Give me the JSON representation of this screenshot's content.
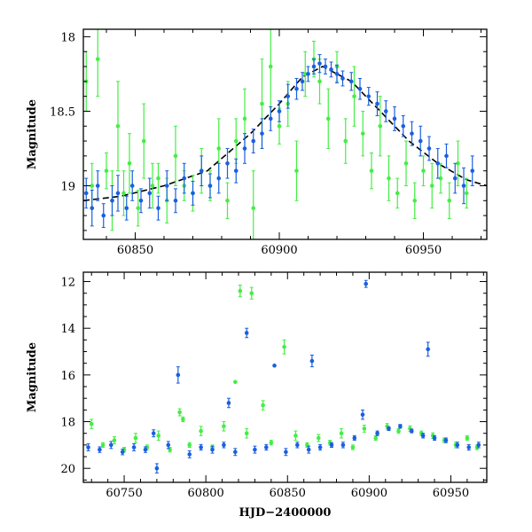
{
  "chart_data": [
    {
      "type": "scatter",
      "panel": "top",
      "xlabel": "",
      "ylabel": "Magnitude",
      "xlim": [
        60832,
        60972
      ],
      "ylim": [
        19.36,
        17.95
      ],
      "y_inverted": true,
      "xticks": [
        60850,
        60900,
        60950
      ],
      "yticks": [
        18,
        18.5,
        19
      ],
      "xtick_labels": [
        "60850",
        "60900",
        "60950"
      ],
      "ytick_labels": [
        "18",
        "18.5",
        "19"
      ],
      "colors": {
        "green": "#44ee44",
        "blue": "#1a5fe0",
        "model": "#000000"
      },
      "model_curve": {
        "style": "dashed",
        "x": [
          60832,
          60845,
          60860,
          60875,
          60890,
          60900,
          60908,
          60915,
          60925,
          60935,
          60945,
          60955,
          60965,
          60972
        ],
        "y": [
          19.1,
          19.07,
          19.0,
          18.9,
          18.65,
          18.45,
          18.27,
          18.2,
          18.3,
          18.5,
          18.7,
          18.85,
          18.96,
          19.0
        ]
      },
      "series": [
        {
          "name": "green",
          "x": [
            60833,
            60835,
            60837,
            60840,
            60842,
            60844,
            60846,
            60848,
            60851,
            60853,
            60856,
            60858,
            60861,
            60864,
            60867,
            60870,
            60873,
            60876,
            60879,
            60882,
            60885,
            60888,
            60891,
            60894,
            60897,
            60900,
            60903,
            60906,
            60909,
            60912,
            60914,
            60917,
            60920,
            60923,
            60926,
            60929,
            60932,
            60935,
            60938,
            60941,
            60944,
            60947,
            60950,
            60953,
            60956,
            60959,
            60962,
            60965
          ],
          "y": [
            18.3,
            19.0,
            18.15,
            18.9,
            19.1,
            18.6,
            19.05,
            18.85,
            19.15,
            18.7,
            19.0,
            18.95,
            19.1,
            18.8,
            19.0,
            19.05,
            18.9,
            19.0,
            18.75,
            19.1,
            18.7,
            18.55,
            19.15,
            18.45,
            18.2,
            18.6,
            18.45,
            18.9,
            18.25,
            18.15,
            18.3,
            18.55,
            18.2,
            18.7,
            18.4,
            18.65,
            18.9,
            18.6,
            18.95,
            19.05,
            18.85,
            19.1,
            18.9,
            19.0,
            18.95,
            19.1,
            18.85,
            19.05
          ],
          "err": [
            0.2,
            0.15,
            0.25,
            0.12,
            0.2,
            0.3,
            0.15,
            0.2,
            0.12,
            0.25,
            0.15,
            0.1,
            0.15,
            0.2,
            0.1,
            0.12,
            0.15,
            0.1,
            0.2,
            0.12,
            0.15,
            0.2,
            0.25,
            0.3,
            0.35,
            0.12,
            0.15,
            0.2,
            0.15,
            0.12,
            0.15,
            0.2,
            0.1,
            0.15,
            0.2,
            0.15,
            0.12,
            0.2,
            0.15,
            0.1,
            0.15,
            0.12,
            0.1,
            0.15,
            0.1,
            0.12,
            0.15,
            0.1
          ]
        },
        {
          "name": "blue",
          "x": [
            60833,
            60835,
            60837,
            60839,
            60842,
            60844,
            60847,
            60849,
            60852,
            60855,
            60858,
            60861,
            60864,
            60867,
            60870,
            60873,
            60876,
            60879,
            60882,
            60885,
            60888,
            60891,
            60894,
            60897,
            60900,
            60903,
            60906,
            60908,
            60910,
            60912,
            60914,
            60916,
            60918,
            60920,
            60922,
            60925,
            60928,
            60931,
            60934,
            60937,
            60940,
            60943,
            60946,
            60949,
            60952,
            60955,
            60958,
            60961,
            60964,
            60967
          ],
          "y": [
            19.05,
            19.15,
            19.0,
            19.2,
            19.1,
            19.05,
            19.15,
            19.0,
            19.1,
            19.05,
            19.15,
            19.0,
            19.1,
            18.95,
            19.05,
            18.9,
            19.0,
            18.95,
            18.85,
            18.9,
            18.75,
            18.7,
            18.65,
            18.55,
            18.5,
            18.4,
            18.35,
            18.3,
            18.25,
            18.2,
            18.18,
            18.2,
            18.22,
            18.25,
            18.28,
            18.3,
            18.35,
            18.4,
            18.45,
            18.5,
            18.55,
            18.6,
            18.65,
            18.7,
            18.75,
            18.85,
            18.8,
            18.95,
            19.0,
            18.9
          ],
          "err": [
            0.1,
            0.12,
            0.1,
            0.08,
            0.1,
            0.12,
            0.08,
            0.1,
            0.08,
            0.1,
            0.08,
            0.1,
            0.08,
            0.1,
            0.08,
            0.1,
            0.08,
            0.1,
            0.1,
            0.08,
            0.1,
            0.08,
            0.1,
            0.08,
            0.07,
            0.08,
            0.07,
            0.06,
            0.05,
            0.05,
            0.06,
            0.05,
            0.05,
            0.06,
            0.05,
            0.06,
            0.07,
            0.06,
            0.08,
            0.07,
            0.08,
            0.07,
            0.08,
            0.1,
            0.08,
            0.1,
            0.08,
            0.1,
            0.12,
            0.1
          ]
        }
      ]
    },
    {
      "type": "scatter",
      "panel": "bottom",
      "xlabel": "HJD−2400000",
      "ylabel": "Magnitude",
      "xlim": [
        60725,
        60972
      ],
      "ylim": [
        20.6,
        11.6
      ],
      "y_inverted": true,
      "xticks": [
        60750,
        60800,
        60850,
        60900,
        60950
      ],
      "yticks": [
        12,
        14,
        16,
        18,
        20
      ],
      "xtick_labels": [
        "60750",
        "60800",
        "60850",
        "60900",
        "60950"
      ],
      "ytick_labels": [
        "12",
        "14",
        "16",
        "18",
        "20"
      ],
      "colors": {
        "green": "#44ee44",
        "blue": "#1a5fe0"
      },
      "series": [
        {
          "name": "green",
          "x": [
            60730,
            60737,
            60744,
            60750,
            60757,
            60764,
            60771,
            60778,
            60784,
            60786,
            60790,
            60797,
            60804,
            60811,
            60818,
            60821,
            60825,
            60828,
            60835,
            60840,
            60848,
            60855,
            60862,
            60869,
            60876,
            60883,
            60890,
            60897,
            60904,
            60911,
            60918,
            60925,
            60932,
            60939,
            60946,
            60953,
            60960,
            60966
          ],
          "y": [
            18.1,
            19.0,
            18.8,
            19.2,
            18.7,
            19.1,
            18.6,
            19.2,
            17.6,
            17.9,
            19.0,
            18.4,
            19.1,
            18.2,
            16.3,
            12.4,
            18.5,
            12.5,
            17.3,
            18.9,
            14.8,
            18.6,
            19.0,
            18.7,
            18.9,
            18.5,
            19.1,
            18.3,
            18.7,
            18.2,
            18.4,
            18.3,
            18.5,
            18.6,
            18.8,
            19.0,
            18.7,
            19.1
          ],
          "err": [
            0.2,
            0.1,
            0.15,
            0.1,
            0.2,
            0.1,
            0.2,
            0.1,
            0.15,
            0.1,
            0.1,
            0.2,
            0.1,
            0.2,
            0.0,
            0.25,
            0.2,
            0.25,
            0.2,
            0.1,
            0.3,
            0.2,
            0.1,
            0.15,
            0.1,
            0.2,
            0.1,
            0.15,
            0.1,
            0.12,
            0.1,
            0.12,
            0.1,
            0.12,
            0.1,
            0.12,
            0.1,
            0.1
          ]
        },
        {
          "name": "blue",
          "x": [
            60728,
            60735,
            60742,
            60749,
            60756,
            60763,
            60768,
            60770,
            60777,
            60783,
            60790,
            60797,
            60804,
            60811,
            60814,
            60818,
            60825,
            60830,
            60837,
            60842,
            60849,
            60856,
            60863,
            60865,
            60870,
            60877,
            60884,
            60891,
            60896,
            60898,
            60905,
            60912,
            60919,
            60926,
            60933,
            60936,
            60940,
            60947,
            60954,
            60961,
            60967
          ],
          "y": [
            19.1,
            19.2,
            19.0,
            19.3,
            19.1,
            19.2,
            18.5,
            20.0,
            19.0,
            16.0,
            19.4,
            19.1,
            19.2,
            19.0,
            17.2,
            19.3,
            14.2,
            19.2,
            19.1,
            15.6,
            19.3,
            19.0,
            19.2,
            15.4,
            19.1,
            19.0,
            19.0,
            18.7,
            17.7,
            12.1,
            18.5,
            18.3,
            18.2,
            18.4,
            18.6,
            14.9,
            18.7,
            18.8,
            19.0,
            19.1,
            19.0
          ],
          "err": [
            0.15,
            0.12,
            0.15,
            0.12,
            0.15,
            0.12,
            0.15,
            0.2,
            0.15,
            0.35,
            0.15,
            0.12,
            0.15,
            0.12,
            0.2,
            0.15,
            0.2,
            0.15,
            0.12,
            0.0,
            0.15,
            0.12,
            0.15,
            0.25,
            0.12,
            0.1,
            0.12,
            0.1,
            0.2,
            0.15,
            0.1,
            0.08,
            0.08,
            0.08,
            0.1,
            0.3,
            0.1,
            0.1,
            0.12,
            0.12,
            0.12
          ]
        }
      ]
    }
  ]
}
